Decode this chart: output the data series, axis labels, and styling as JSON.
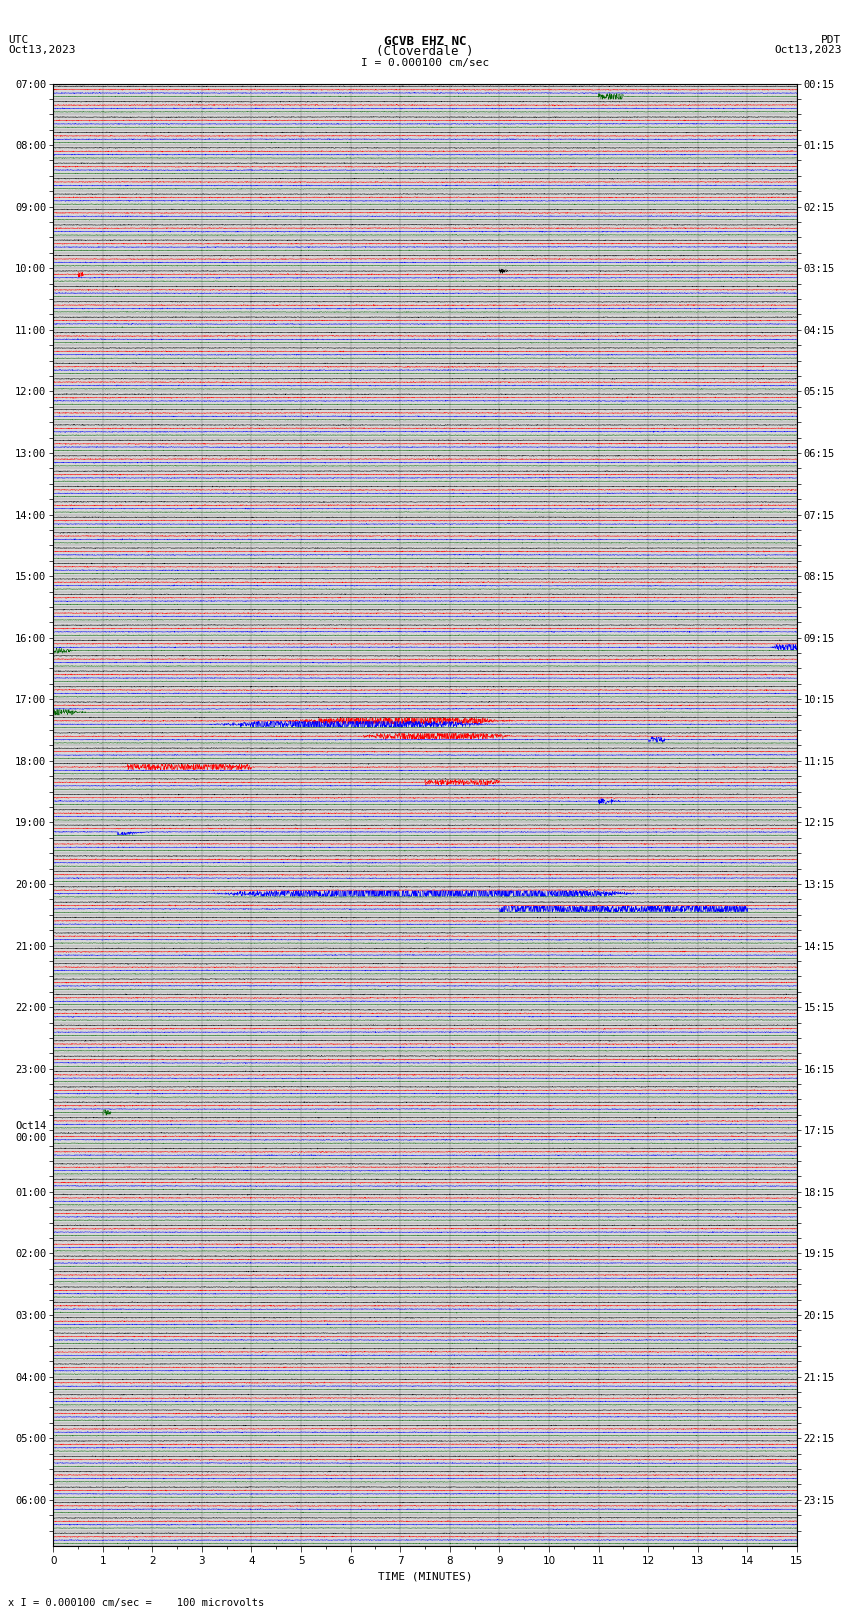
{
  "title_line1": "GCVB EHZ NC",
  "title_line2": "(Cloverdale )",
  "scale_label": "I = 0.000100 cm/sec",
  "footer_label": "x I = 0.000100 cm/sec =    100 microvolts",
  "utc_label": "UTC\nOct13,2023",
  "pdt_label": "PDT\nOct13,2023",
  "xlabel": "TIME (MINUTES)",
  "left_times": [
    "07:00",
    "",
    "",
    "",
    "08:00",
    "",
    "",
    "",
    "09:00",
    "",
    "",
    "",
    "10:00",
    "",
    "",
    "",
    "11:00",
    "",
    "",
    "",
    "12:00",
    "",
    "",
    "",
    "13:00",
    "",
    "",
    "",
    "14:00",
    "",
    "",
    "",
    "15:00",
    "",
    "",
    "",
    "16:00",
    "",
    "",
    "",
    "17:00",
    "",
    "",
    "",
    "18:00",
    "",
    "",
    "",
    "19:00",
    "",
    "",
    "",
    "20:00",
    "",
    "",
    "",
    "21:00",
    "",
    "",
    "",
    "22:00",
    "",
    "",
    "",
    "23:00",
    "",
    "",
    "",
    "Oct14\n00:00",
    "",
    "",
    "",
    "01:00",
    "",
    "",
    "",
    "02:00",
    "",
    "",
    "",
    "03:00",
    "",
    "",
    "",
    "04:00",
    "",
    "",
    "",
    "05:00",
    "",
    "",
    "",
    "06:00",
    "",
    ""
  ],
  "right_times": [
    "00:15",
    "",
    "",
    "",
    "01:15",
    "",
    "",
    "",
    "02:15",
    "",
    "",
    "",
    "03:15",
    "",
    "",
    "",
    "04:15",
    "",
    "",
    "",
    "05:15",
    "",
    "",
    "",
    "06:15",
    "",
    "",
    "",
    "07:15",
    "",
    "",
    "",
    "08:15",
    "",
    "",
    "",
    "09:15",
    "",
    "",
    "",
    "10:15",
    "",
    "",
    "",
    "11:15",
    "",
    "",
    "",
    "12:15",
    "",
    "",
    "",
    "13:15",
    "",
    "",
    "",
    "14:15",
    "",
    "",
    "",
    "15:15",
    "",
    "",
    "",
    "16:15",
    "",
    "",
    "",
    "17:15",
    "",
    "",
    "",
    "18:15",
    "",
    "",
    "",
    "19:15",
    "",
    "",
    "",
    "20:15",
    "",
    "",
    "",
    "21:15",
    "",
    "",
    "",
    "22:15",
    "",
    "",
    "",
    "23:15",
    "",
    ""
  ],
  "num_rows": 95,
  "xmin": 0,
  "xmax": 15,
  "colors": [
    "black",
    "red",
    "blue",
    "darkgreen"
  ],
  "bg_color": "#d8d8d8",
  "noise_amplitude": 0.012,
  "title_fontsize": 9,
  "label_fontsize": 8,
  "tick_fontsize": 7.5
}
